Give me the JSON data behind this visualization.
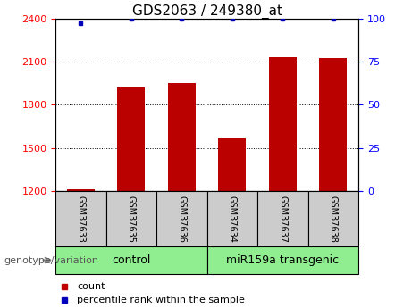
{
  "title": "GDS2063 / 249380_at",
  "samples": [
    "GSM37633",
    "GSM37635",
    "GSM37636",
    "GSM37634",
    "GSM37637",
    "GSM37638"
  ],
  "counts": [
    1210,
    1920,
    1950,
    1565,
    2130,
    2125
  ],
  "percentile_ranks": [
    97,
    100,
    100,
    100,
    100,
    100
  ],
  "ylim_left": [
    1200,
    2400
  ],
  "ylim_right": [
    0,
    100
  ],
  "yticks_left": [
    1200,
    1500,
    1800,
    2100,
    2400
  ],
  "yticks_right": [
    0,
    25,
    50,
    75,
    100
  ],
  "bar_color": "#bb0000",
  "dot_color": "#0000bb",
  "bar_width": 0.55,
  "group1_label": "control",
  "group1_indices": [
    0,
    1,
    2
  ],
  "group2_label": "miR159a transgenic",
  "group2_indices": [
    3,
    4,
    5
  ],
  "group_color": "#90ee90",
  "sample_box_color": "#cccccc",
  "genotype_label": "genotype/variation",
  "legend_count_label": "count",
  "legend_pct_label": "percentile rank within the sample",
  "title_fontsize": 11,
  "tick_fontsize": 8,
  "sample_fontsize": 7,
  "group_fontsize": 9,
  "legend_fontsize": 8,
  "genotype_fontsize": 8
}
